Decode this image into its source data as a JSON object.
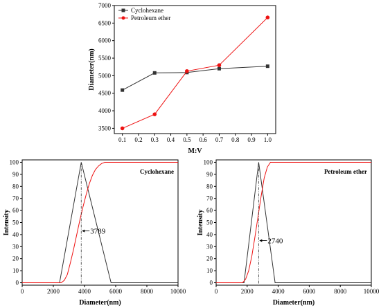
{
  "chart_data": [
    {
      "type": "line",
      "xlabel": "M:V",
      "ylabel": "Diameter(nm)",
      "xlim": [
        0.05,
        1.05
      ],
      "ylim": [
        3350,
        7000
      ],
      "xticks": [
        "0.1",
        "0.2",
        "0.3",
        "0.4",
        "0.5",
        "0.6",
        "0.7",
        "0.8",
        "0.9",
        "1.0"
      ],
      "yticks": [
        "3500",
        "4000",
        "4500",
        "5000",
        "5500",
        "6000",
        "6500",
        "7000"
      ],
      "legend_position": "top-left",
      "series": [
        {
          "name": "Cyclohexane",
          "color": "#333333",
          "marker": "square",
          "x": [
            0.1,
            0.3,
            0.5,
            0.7,
            1.0
          ],
          "y": [
            4590,
            5080,
            5090,
            5200,
            5270
          ]
        },
        {
          "name": "Petroleum ether",
          "color": "#ee1111",
          "marker": "circle",
          "x": [
            0.1,
            0.3,
            0.5,
            0.7,
            1.0
          ],
          "y": [
            3500,
            3900,
            5130,
            5300,
            6660
          ]
        }
      ]
    },
    {
      "type": "line",
      "xlabel": "Diameter(nm)",
      "ylabel": "Intensity",
      "corner_label": "Cyclohexane",
      "xlim": [
        0,
        10000
      ],
      "ylim": [
        -2,
        102
      ],
      "xticks": [
        "0",
        "2000",
        "4000",
        "6000",
        "8000",
        "10000"
      ],
      "yticks": [
        "0",
        "10",
        "20",
        "30",
        "40",
        "50",
        "60",
        "70",
        "80",
        "90",
        "100"
      ],
      "annotation": {
        "text": "3789",
        "x": 3789,
        "y": 43
      },
      "series": [
        {
          "color": "#333333",
          "x": [
            0,
            2400,
            3789,
            5700,
            10000
          ],
          "y": [
            0,
            0,
            100,
            0,
            0
          ]
        },
        {
          "color": "#ee1111",
          "x": [
            0,
            2500,
            2700,
            2900,
            3100,
            3300,
            3500,
            3700,
            3900,
            4100,
            4300,
            4500,
            4700,
            4900,
            5100,
            5300,
            10000
          ],
          "y": [
            0,
            0,
            2,
            7,
            17,
            28,
            40,
            52,
            63,
            73,
            82,
            89,
            94,
            97,
            99,
            100,
            100
          ]
        }
      ]
    },
    {
      "type": "line",
      "xlabel": "Diameter(nm)",
      "ylabel": "Intensity",
      "corner_label": "Petroleum ether",
      "xlim": [
        0,
        10000
      ],
      "ylim": [
        -2,
        102
      ],
      "xticks": [
        "0",
        "2000",
        "4000",
        "6000",
        "8000",
        "10000"
      ],
      "yticks": [
        "0",
        "10",
        "20",
        "30",
        "40",
        "50",
        "60",
        "70",
        "80",
        "90",
        "100"
      ],
      "annotation": {
        "text": "2740",
        "x": 2740,
        "y": 35
      },
      "series": [
        {
          "color": "#333333",
          "x": [
            0,
            1800,
            2740,
            3800,
            10000
          ],
          "y": [
            0,
            0,
            100,
            0,
            0
          ]
        },
        {
          "color": "#ee1111",
          "x": [
            0,
            1700,
            1900,
            2100,
            2300,
            2500,
            2700,
            2900,
            3100,
            3300,
            3500,
            10000
          ],
          "y": [
            0,
            0,
            3,
            10,
            22,
            38,
            55,
            72,
            87,
            96,
            100,
            100
          ]
        }
      ]
    }
  ]
}
